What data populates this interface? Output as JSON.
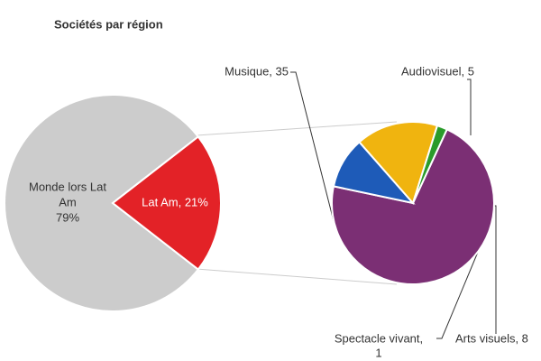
{
  "chart_data": [
    {
      "type": "pie",
      "title": "Sociétés par région",
      "values": [
        79,
        21
      ],
      "value_labels": [
        [
          "Monde lors Lat",
          "Am",
          "79%"
        ],
        [
          "Lat Am, 21%"
        ]
      ],
      "colors": [
        "#cccccc",
        "#e32227"
      ]
    },
    {
      "type": "pie",
      "values": [
        35,
        5,
        8,
        1
      ],
      "value_labels": [
        [
          "Musique, 35"
        ],
        [
          "Audiovisuel, 5"
        ],
        [
          "Arts visuels, 8"
        ],
        [
          "Spectacle vivant,",
          "1"
        ]
      ],
      "colors": [
        "#7b2f74",
        "#1e5bb8",
        "#f0b40f",
        "#2a9b2a"
      ]
    }
  ]
}
